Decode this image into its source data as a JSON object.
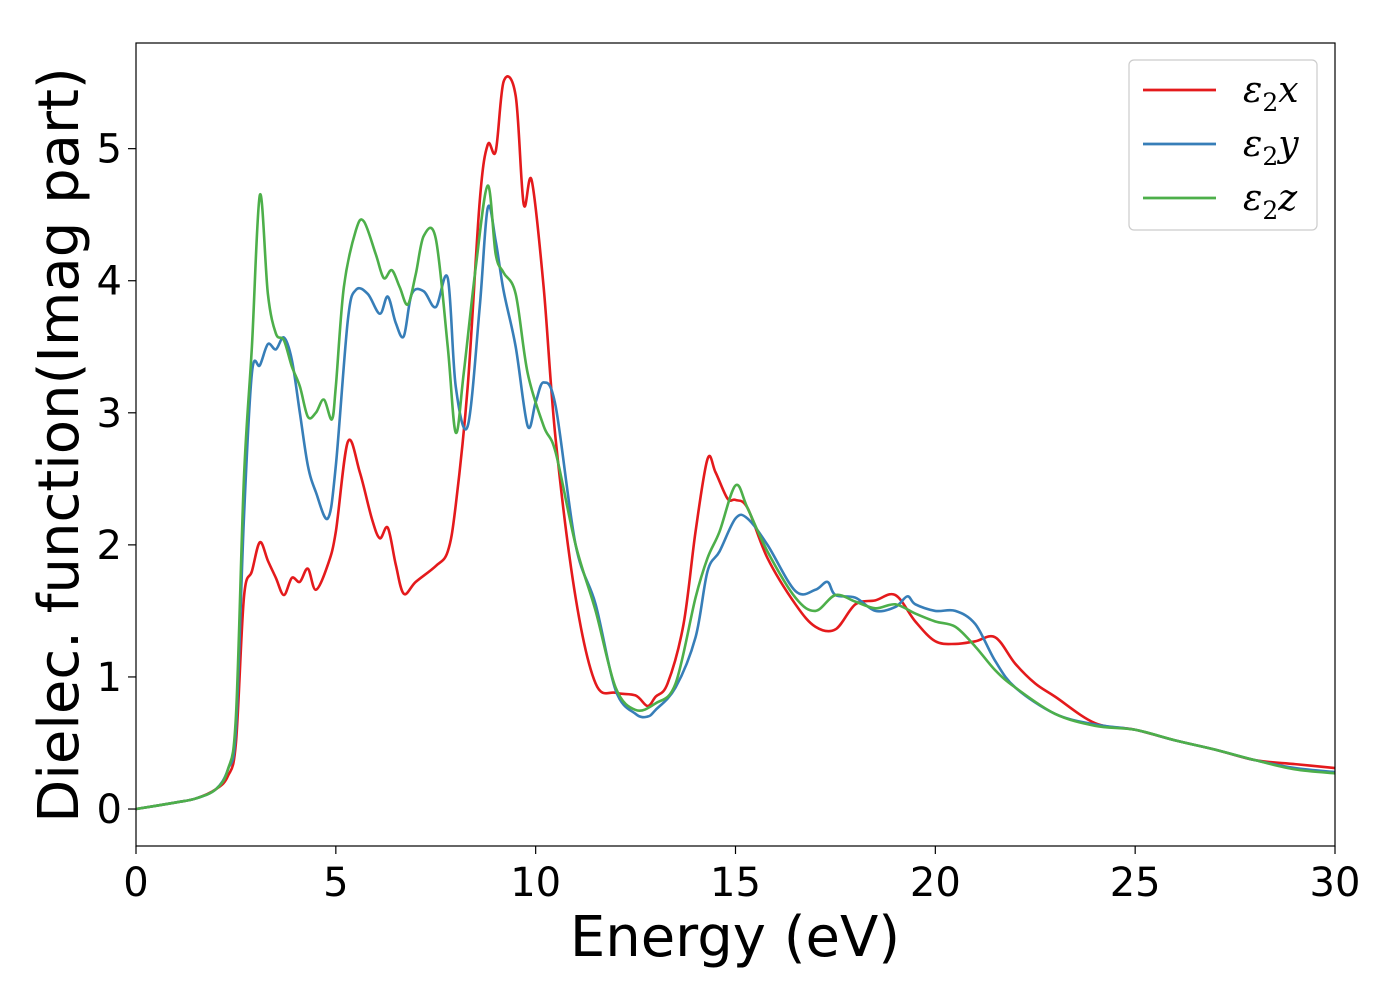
{
  "chart_data": {
    "type": "line",
    "xlabel": "Energy (eV)",
    "ylabel": "Dielec. function(Imag part)",
    "xlim": [
      0,
      30
    ],
    "ylim": [
      -0.28,
      5.8
    ],
    "xticks": [
      "0",
      "5",
      "10",
      "15",
      "20",
      "25",
      "30"
    ],
    "yticks": [
      "0",
      "1",
      "2",
      "3",
      "4",
      "5"
    ],
    "grid": false,
    "legend_position": "top-right",
    "series": [
      {
        "name": "ε₂x",
        "legend_base": "ε",
        "legend_sub": "2",
        "legend_suffix": "x",
        "color": "#e41a1c",
        "x": [
          0,
          1,
          1.5,
          2.0,
          2.3,
          2.5,
          2.7,
          2.9,
          3.1,
          3.3,
          3.5,
          3.7,
          3.9,
          4.1,
          4.3,
          4.5,
          4.8,
          5.0,
          5.3,
          5.6,
          5.9,
          6.1,
          6.3,
          6.5,
          6.7,
          7.0,
          7.5,
          7.8,
          8.0,
          8.3,
          8.6,
          8.8,
          9.0,
          9.2,
          9.5,
          9.7,
          9.9,
          10.2,
          10.5,
          11.0,
          11.5,
          12.0,
          12.5,
          12.8,
          13.0,
          13.3,
          13.7,
          14.0,
          14.3,
          14.5,
          14.8,
          15.0,
          15.3,
          15.8,
          16.5,
          17.0,
          17.5,
          18.0,
          18.5,
          19.0,
          19.5,
          20.0,
          20.5,
          21.0,
          21.5,
          22.0,
          22.5,
          23.0,
          24.0,
          25.0,
          26.0,
          27.0,
          28.0,
          29.0,
          30.0
        ],
        "y": [
          0,
          0.05,
          0.08,
          0.15,
          0.25,
          0.5,
          1.6,
          1.8,
          2.02,
          1.88,
          1.75,
          1.62,
          1.75,
          1.72,
          1.82,
          1.66,
          1.85,
          2.1,
          2.78,
          2.55,
          2.2,
          2.05,
          2.13,
          1.85,
          1.63,
          1.72,
          1.84,
          1.95,
          2.3,
          3.2,
          4.6,
          5.03,
          4.98,
          5.51,
          5.4,
          4.58,
          4.76,
          3.95,
          2.8,
          1.6,
          0.95,
          0.88,
          0.86,
          0.78,
          0.85,
          0.95,
          1.4,
          2.1,
          2.65,
          2.55,
          2.35,
          2.34,
          2.28,
          1.9,
          1.55,
          1.38,
          1.36,
          1.55,
          1.58,
          1.62,
          1.42,
          1.27,
          1.25,
          1.27,
          1.3,
          1.1,
          0.95,
          0.85,
          0.65,
          0.6,
          0.52,
          0.45,
          0.37,
          0.34,
          0.31
        ]
      },
      {
        "name": "ε₂y",
        "legend_base": "ε",
        "legend_sub": "2",
        "legend_suffix": "y",
        "color": "#377eb8",
        "x": [
          0,
          1,
          1.5,
          2.0,
          2.3,
          2.5,
          2.7,
          2.9,
          3.1,
          3.3,
          3.5,
          3.7,
          3.9,
          4.1,
          4.3,
          4.5,
          4.8,
          5.0,
          5.3,
          5.5,
          5.8,
          6.1,
          6.3,
          6.5,
          6.7,
          6.9,
          7.2,
          7.5,
          7.8,
          8.0,
          8.3,
          8.6,
          8.8,
          9.0,
          9.2,
          9.5,
          9.8,
          10.0,
          10.2,
          10.5,
          11.0,
          11.5,
          12.0,
          12.5,
          12.8,
          13.0,
          13.5,
          14.0,
          14.3,
          14.6,
          15.0,
          15.3,
          15.8,
          16.5,
          17.0,
          17.3,
          17.5,
          18.0,
          18.5,
          19.0,
          19.3,
          19.5,
          20.0,
          20.5,
          21.0,
          21.5,
          22.0,
          23.0,
          24.0,
          25.0,
          26.0,
          27.0,
          28.0,
          29.0,
          30.0
        ],
        "y": [
          0,
          0.05,
          0.08,
          0.15,
          0.3,
          0.6,
          2.2,
          3.3,
          3.36,
          3.52,
          3.48,
          3.57,
          3.4,
          3.0,
          2.6,
          2.4,
          2.2,
          2.6,
          3.7,
          3.93,
          3.9,
          3.75,
          3.88,
          3.68,
          3.58,
          3.9,
          3.92,
          3.8,
          4.02,
          3.2,
          2.9,
          3.8,
          4.55,
          4.3,
          3.92,
          3.5,
          2.9,
          3.08,
          3.23,
          3.05,
          2.0,
          1.55,
          0.9,
          0.72,
          0.7,
          0.75,
          0.92,
          1.3,
          1.8,
          1.95,
          2.2,
          2.2,
          2.0,
          1.65,
          1.66,
          1.72,
          1.62,
          1.6,
          1.5,
          1.53,
          1.61,
          1.55,
          1.5,
          1.5,
          1.4,
          1.12,
          0.92,
          0.72,
          0.64,
          0.6,
          0.52,
          0.45,
          0.37,
          0.31,
          0.28
        ]
      },
      {
        "name": "ε₂z",
        "legend_base": "ε",
        "legend_sub": "2",
        "legend_suffix": "z",
        "color": "#4daf4a",
        "x": [
          0,
          1,
          1.5,
          2.0,
          2.3,
          2.5,
          2.7,
          2.9,
          3.1,
          3.3,
          3.5,
          3.7,
          3.9,
          4.1,
          4.3,
          4.5,
          4.7,
          4.9,
          5.0,
          5.2,
          5.5,
          5.7,
          6.0,
          6.2,
          6.4,
          6.6,
          6.8,
          7.0,
          7.2,
          7.5,
          7.8,
          8.0,
          8.2,
          8.5,
          8.8,
          9.0,
          9.2,
          9.5,
          9.8,
          10.2,
          10.5,
          11.0,
          11.5,
          12.0,
          12.5,
          13.0,
          13.5,
          14.0,
          14.3,
          14.6,
          15.0,
          15.3,
          15.8,
          16.5,
          17.0,
          17.5,
          18.0,
          18.5,
          19.0,
          19.5,
          20.0,
          20.5,
          21.0,
          21.5,
          22.0,
          23.0,
          24.0,
          25.0,
          26.0,
          27.0,
          28.0,
          29.0,
          30.0
        ],
        "y": [
          0,
          0.05,
          0.08,
          0.15,
          0.3,
          0.7,
          2.5,
          3.5,
          4.65,
          3.9,
          3.6,
          3.55,
          3.35,
          3.2,
          2.97,
          3.0,
          3.1,
          2.95,
          3.2,
          3.95,
          4.38,
          4.45,
          4.2,
          4.02,
          4.08,
          3.95,
          3.82,
          4.05,
          4.34,
          4.32,
          3.5,
          2.85,
          3.3,
          4.1,
          4.72,
          4.2,
          4.06,
          3.9,
          3.3,
          2.9,
          2.7,
          2.0,
          1.5,
          0.92,
          0.75,
          0.8,
          0.95,
          1.6,
          1.9,
          2.1,
          2.45,
          2.28,
          1.95,
          1.6,
          1.5,
          1.62,
          1.57,
          1.52,
          1.55,
          1.48,
          1.42,
          1.38,
          1.23,
          1.05,
          0.92,
          0.72,
          0.63,
          0.6,
          0.52,
          0.45,
          0.37,
          0.3,
          0.27
        ]
      }
    ]
  }
}
